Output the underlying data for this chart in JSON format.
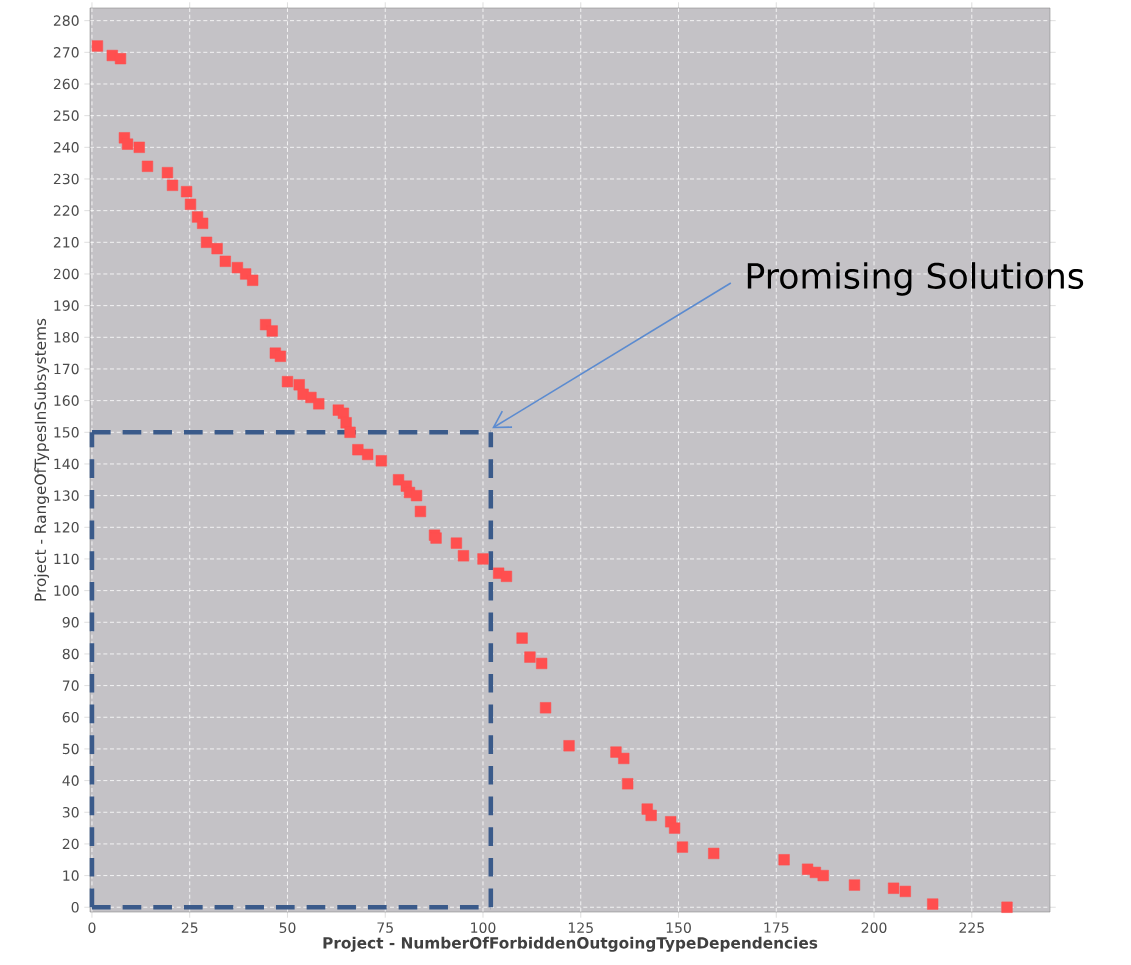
{
  "chart_data": {
    "type": "scatter",
    "xlabel": "Project - NumberOfForbiddenOutgoingTypeDependencies",
    "ylabel": "Project - RangeOfTypesInSubsystems",
    "x": [
      1.4,
      5.2,
      7.3,
      8.3,
      9.1,
      12.1,
      14.2,
      19.3,
      20.6,
      24.2,
      25.2,
      27,
      28.3,
      29.3,
      32,
      34.1,
      37.2,
      39.3,
      41.1,
      44.4,
      46.1,
      46.9,
      48.2,
      50,
      53,
      54,
      56,
      58,
      63,
      64.3,
      65,
      66,
      68,
      70.5,
      74,
      78.4,
      80.4,
      81.2,
      83,
      84,
      87.6,
      88,
      93.2,
      95,
      100,
      104,
      106,
      110,
      112,
      115,
      116,
      122,
      134,
      136,
      137,
      142,
      143,
      148,
      149,
      151,
      159,
      177,
      183,
      185,
      187,
      195,
      205,
      208,
      215,
      234
    ],
    "values": [
      272,
      269,
      268,
      243,
      241,
      240,
      234,
      232,
      228,
      226,
      222,
      218,
      216,
      210,
      208,
      204,
      202,
      200,
      198,
      184,
      182,
      175,
      174,
      166,
      165,
      162,
      161,
      159,
      157,
      156,
      153,
      150,
      144.5,
      143,
      141,
      135,
      133,
      131,
      130,
      125,
      117.5,
      116.6,
      115,
      111,
      110,
      105.5,
      104.5,
      85,
      79,
      77,
      63,
      51,
      49,
      47,
      39,
      31,
      29,
      27,
      25,
      19,
      17,
      15,
      12,
      11,
      10,
      7,
      6,
      5,
      1,
      0
    ],
    "color": "#ff4f4f",
    "marker": "square",
    "xlim": [
      -0.5,
      245
    ],
    "ylim": [
      -1.5,
      284
    ],
    "xticks": [
      0,
      25,
      50,
      75,
      100,
      125,
      150,
      175,
      200,
      225
    ],
    "yticks": [
      0,
      10,
      20,
      30,
      40,
      50,
      60,
      70,
      80,
      90,
      100,
      110,
      120,
      130,
      140,
      150,
      160,
      170,
      180,
      190,
      200,
      210,
      220,
      230,
      240,
      250,
      260,
      270,
      280
    ],
    "grid": true,
    "ref_lines": [
      {
        "axis": "x",
        "value": 0,
        "color": "#3a5a8a",
        "line_style": "dashed"
      },
      {
        "axis": "x",
        "value": 102,
        "color": "#3a5a8a",
        "line_style": "dashed"
      },
      {
        "axis": "y",
        "value": 0,
        "color": "#3a5a8a",
        "line_style": "dashed"
      },
      {
        "axis": "y",
        "value": 150,
        "color": "#3a5a8a",
        "line_style": "dashed"
      }
    ],
    "annotations": [
      "Promising Solutions"
    ]
  }
}
